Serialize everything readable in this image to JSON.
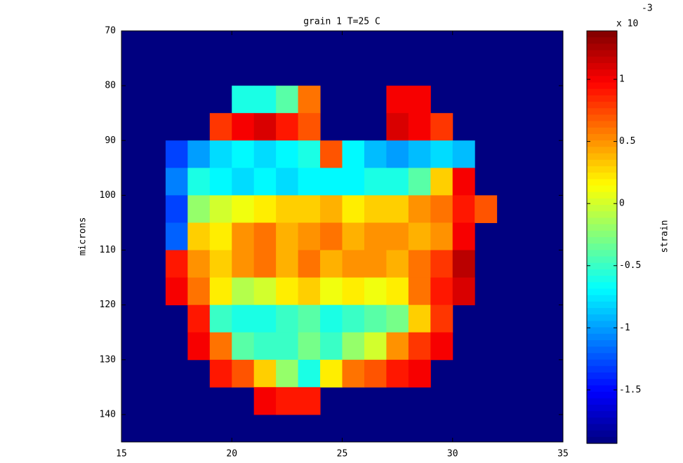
{
  "chart_data": {
    "type": "heatmap",
    "title": "grain 1 T=25 C",
    "ylabel": "microns",
    "colorbar_label": "strain",
    "colorbar_multiplier": "x 10",
    "colorbar_exponent": "-3",
    "colormap": "jet",
    "background_color": "#000080",
    "xlim": [
      15,
      35
    ],
    "ylim": [
      70,
      145
    ],
    "y_reversed": true,
    "xticks": [
      15,
      20,
      25,
      30,
      35
    ],
    "yticks": [
      70,
      80,
      90,
      100,
      110,
      120,
      130,
      140
    ],
    "clim": [
      -1.93,
      1.39
    ],
    "cticks": [
      -1.5,
      -1,
      -0.5,
      0,
      0.5,
      1
    ],
    "x_edges": [
      15,
      16,
      17,
      18,
      19,
      20,
      21,
      22,
      23,
      24,
      25,
      26,
      27,
      28,
      29,
      30,
      31,
      32,
      33,
      34,
      35
    ],
    "y_edges": [
      70,
      75,
      80,
      85,
      90,
      95,
      100,
      105,
      110,
      115,
      120,
      125,
      130,
      135,
      140,
      145
    ],
    "z": [
      [
        null,
        null,
        null,
        null,
        null,
        null,
        null,
        null,
        null,
        null,
        null,
        null,
        null,
        null,
        null,
        null,
        null,
        null,
        null,
        null
      ],
      [
        null,
        null,
        null,
        null,
        null,
        null,
        null,
        null,
        null,
        null,
        null,
        null,
        null,
        null,
        null,
        null,
        null,
        null,
        null,
        null
      ],
      [
        null,
        null,
        null,
        null,
        null,
        -0.6,
        -0.6,
        -0.4,
        0.6,
        null,
        null,
        null,
        1.0,
        1.0,
        null,
        null,
        null,
        null,
        null,
        null
      ],
      [
        null,
        null,
        null,
        null,
        0.8,
        1.0,
        1.1,
        0.9,
        0.7,
        null,
        null,
        null,
        1.1,
        1.0,
        0.8,
        null,
        null,
        null,
        null,
        null
      ],
      [
        null,
        null,
        -1.3,
        -1.0,
        -0.8,
        -0.7,
        -0.8,
        -0.7,
        -0.6,
        0.7,
        -0.7,
        -0.9,
        -1.0,
        -0.9,
        -0.8,
        -0.9,
        null,
        null,
        null,
        null
      ],
      [
        null,
        null,
        -1.1,
        -0.6,
        -0.7,
        -0.8,
        -0.7,
        -0.8,
        -0.7,
        -0.7,
        -0.7,
        -0.6,
        -0.6,
        -0.4,
        0.3,
        1.0,
        null,
        null,
        null,
        null
      ],
      [
        null,
        null,
        -1.3,
        -0.2,
        0.0,
        0.1,
        0.2,
        0.3,
        0.3,
        0.4,
        0.2,
        0.3,
        0.3,
        0.5,
        0.6,
        0.9,
        0.7,
        null,
        null,
        null
      ],
      [
        null,
        null,
        -1.2,
        0.3,
        0.2,
        0.5,
        0.6,
        0.4,
        0.5,
        0.6,
        0.4,
        0.5,
        0.5,
        0.4,
        0.5,
        1.0,
        null,
        null,
        null,
        null
      ],
      [
        null,
        null,
        0.9,
        0.5,
        0.3,
        0.5,
        0.6,
        0.4,
        0.6,
        0.4,
        0.5,
        0.5,
        0.4,
        0.6,
        0.8,
        1.2,
        null,
        null,
        null,
        null
      ],
      [
        null,
        null,
        1.0,
        0.6,
        0.2,
        -0.1,
        0.0,
        0.2,
        0.3,
        0.1,
        0.2,
        0.1,
        0.2,
        0.6,
        0.9,
        1.1,
        null,
        null,
        null,
        null
      ],
      [
        null,
        null,
        null,
        0.9,
        -0.5,
        -0.6,
        -0.6,
        -0.5,
        -0.4,
        -0.6,
        -0.5,
        -0.4,
        -0.3,
        0.3,
        0.8,
        null,
        null,
        null,
        null,
        null
      ],
      [
        null,
        null,
        null,
        1.0,
        0.6,
        -0.4,
        -0.5,
        -0.5,
        -0.3,
        -0.5,
        -0.2,
        0.0,
        0.5,
        0.8,
        1.0,
        null,
        null,
        null,
        null,
        null
      ],
      [
        null,
        null,
        null,
        null,
        0.9,
        0.7,
        0.3,
        -0.2,
        -0.6,
        0.2,
        0.6,
        0.7,
        0.9,
        1.0,
        null,
        null,
        null,
        null,
        null,
        null
      ],
      [
        null,
        null,
        null,
        null,
        null,
        null,
        1.0,
        0.9,
        0.9,
        null,
        null,
        null,
        null,
        null,
        null,
        null,
        null,
        null,
        null,
        null
      ],
      [
        null,
        null,
        null,
        null,
        null,
        null,
        null,
        null,
        null,
        null,
        null,
        null,
        null,
        null,
        null,
        null,
        null,
        null,
        null,
        null
      ]
    ]
  }
}
